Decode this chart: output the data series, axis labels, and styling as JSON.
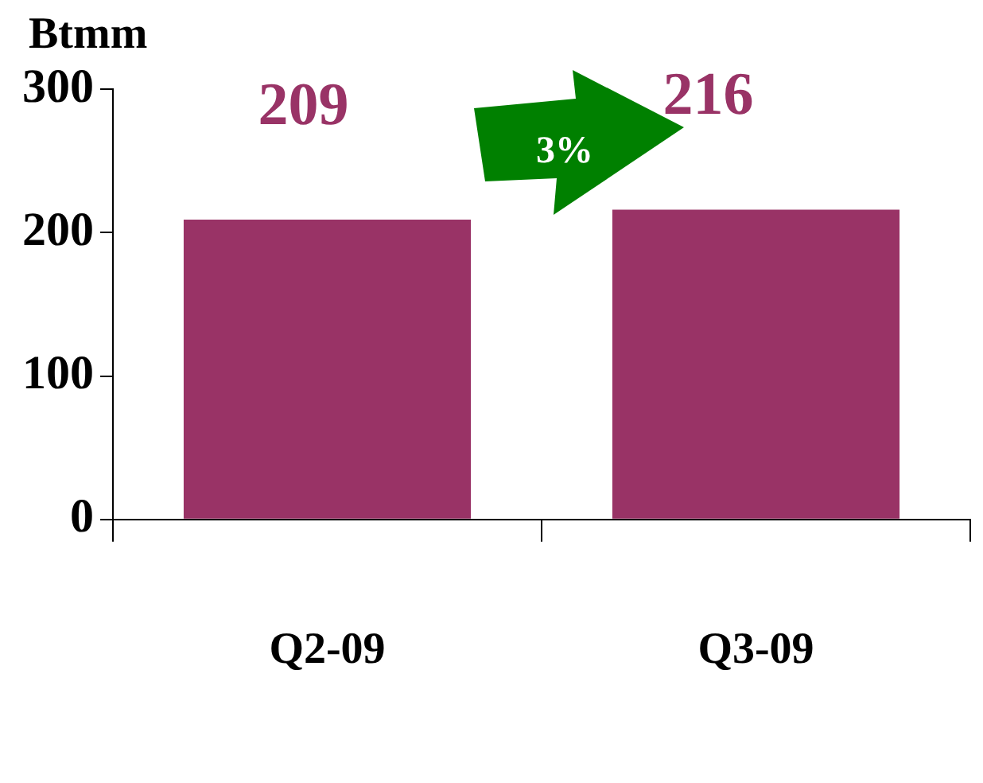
{
  "chart_data": {
    "type": "bar",
    "ylabel": "Btmm",
    "categories": [
      "Q2-09",
      "Q3-09"
    ],
    "values": [
      209,
      216
    ],
    "color": "#993366",
    "ylim": [
      0,
      300
    ],
    "yticks": [
      0,
      100,
      200,
      300
    ],
    "data_labels": true,
    "grid": false,
    "legend": false,
    "annotations": [
      "3%"
    ]
  }
}
